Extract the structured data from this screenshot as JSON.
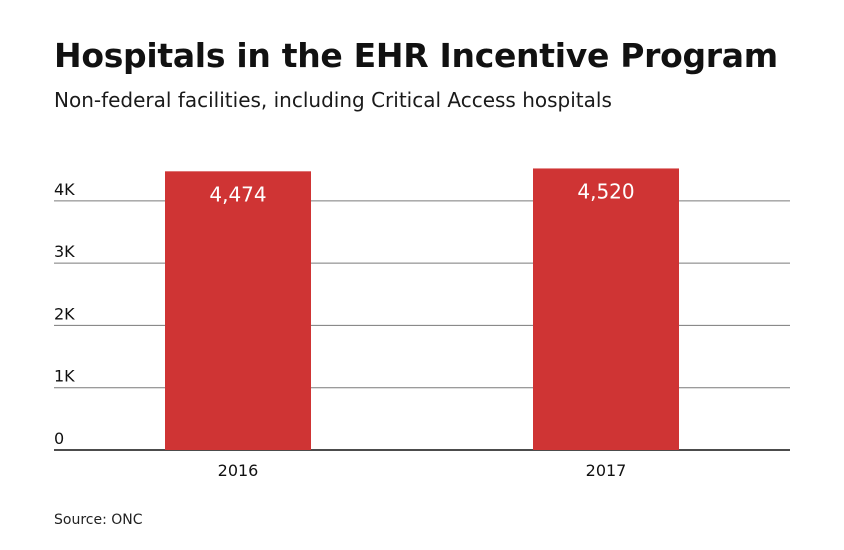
{
  "title": "Hospitals in the EHR Incentive Program",
  "subtitle": "Non-federal facilities, including Critical Access hospitals",
  "source": "Source: ONC",
  "colors": {
    "bar": "#cf3434",
    "grid": "#7a7a7a",
    "axis": "#111111",
    "label_inside": "#ffffff"
  },
  "chart_data": {
    "type": "bar",
    "categories": [
      "2016",
      "2017"
    ],
    "values": [
      4474,
      4520
    ],
    "value_labels": [
      "4,474",
      "4,520"
    ],
    "ylim": [
      0,
      4720
    ],
    "yticks": [
      0,
      1000,
      2000,
      3000,
      4000
    ],
    "ytick_labels": [
      "0",
      "1K",
      "2K",
      "3K",
      "4K"
    ],
    "grid": true,
    "xlabel": "",
    "ylabel": ""
  }
}
